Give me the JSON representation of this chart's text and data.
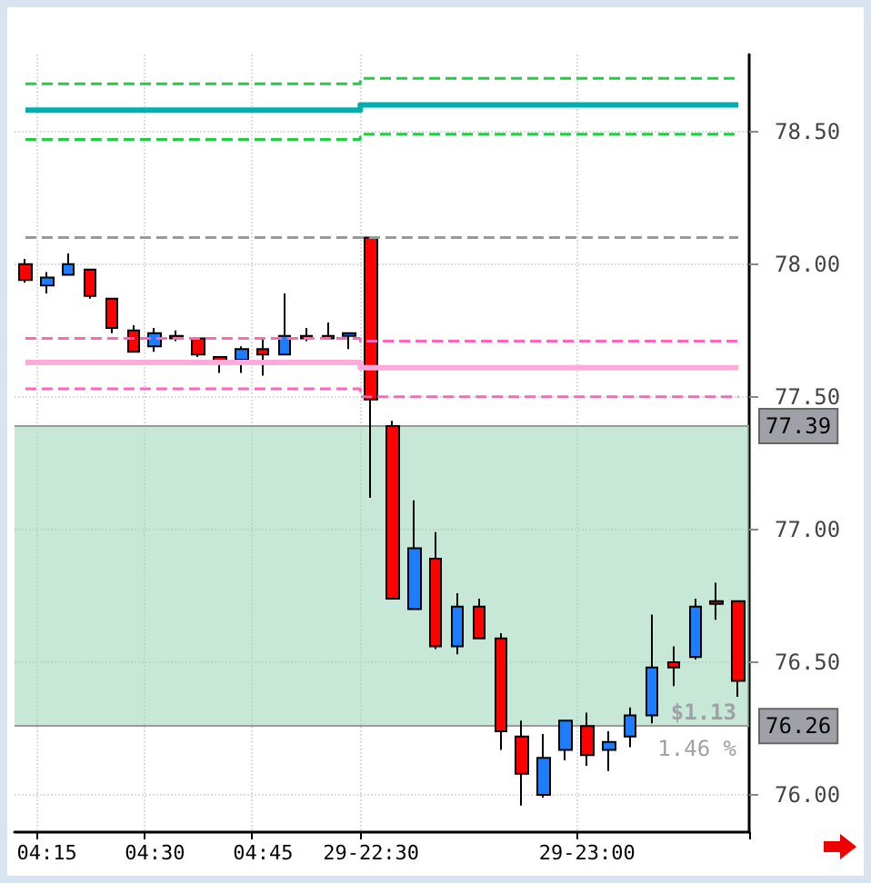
{
  "chart_data": {
    "type": "candlestick",
    "categories": [
      null,
      "04:15",
      null,
      null,
      null,
      null,
      "04:30",
      null,
      null,
      null,
      null,
      "04:45",
      null,
      null,
      null,
      null,
      "29-22:30",
      null,
      null,
      null,
      null,
      null,
      null,
      null,
      null,
      null,
      "29-23:00",
      null,
      null,
      null,
      null,
      null,
      null,
      null
    ],
    "ohlc": [
      [
        78.0,
        78.02,
        77.93,
        77.94
      ],
      [
        77.92,
        77.97,
        77.89,
        77.95
      ],
      [
        77.96,
        78.04,
        77.96,
        78.0
      ],
      [
        77.98,
        77.98,
        77.87,
        77.88
      ],
      [
        77.87,
        77.87,
        77.74,
        77.76
      ],
      [
        77.75,
        77.77,
        77.67,
        77.67
      ],
      [
        77.69,
        77.76,
        77.67,
        77.74
      ],
      [
        77.72,
        77.75,
        77.71,
        77.73
      ],
      [
        77.72,
        77.72,
        77.65,
        77.66
      ],
      [
        77.65,
        77.65,
        77.59,
        77.63
      ],
      [
        77.64,
        77.69,
        77.59,
        77.68
      ],
      [
        77.68,
        77.72,
        77.58,
        77.66
      ],
      [
        77.66,
        77.89,
        77.66,
        77.73
      ],
      [
        77.73,
        77.76,
        77.71,
        77.72
      ],
      [
        77.73,
        77.78,
        77.72,
        77.72
      ],
      [
        77.73,
        77.74,
        77.68,
        77.74
      ],
      [
        78.1,
        78.1,
        77.12,
        77.49
      ],
      [
        77.39,
        77.41,
        76.74,
        76.74
      ],
      [
        76.7,
        77.11,
        76.7,
        76.93
      ],
      [
        76.89,
        76.99,
        76.55,
        76.56
      ],
      [
        76.56,
        76.76,
        76.53,
        76.71
      ],
      [
        76.71,
        76.74,
        76.59,
        76.59
      ],
      [
        76.59,
        76.61,
        76.17,
        76.24
      ],
      [
        76.22,
        76.28,
        75.96,
        76.08
      ],
      [
        76.0,
        76.23,
        75.99,
        76.14
      ],
      [
        76.17,
        76.28,
        76.13,
        76.28
      ],
      [
        76.26,
        76.31,
        76.11,
        76.15
      ],
      [
        76.17,
        76.24,
        76.09,
        76.2
      ],
      [
        76.22,
        76.33,
        76.18,
        76.3
      ],
      [
        76.3,
        76.68,
        76.27,
        76.48
      ],
      [
        76.5,
        76.56,
        76.41,
        76.48
      ],
      [
        76.52,
        76.74,
        76.51,
        76.71
      ],
      [
        76.73,
        76.8,
        76.66,
        76.72
      ],
      [
        76.73,
        76.73,
        76.37,
        76.43
      ]
    ],
    "colors": [
      "#ff0000",
      "#1e7cff",
      "#1e7cff",
      "#ff0000",
      "#ff0000",
      "#ff0000",
      "#1e7cff",
      "#ff0000",
      "#ff0000",
      "#ff0000",
      "#1e7cff",
      "#ff0000",
      "#1e7cff",
      "#ff0000",
      "#ff0000",
      "#1e7cff",
      "#ff0000",
      "#ff0000",
      "#1e7cff",
      "#ff0000",
      "#1e7cff",
      "#ff0000",
      "#ff0000",
      "#ff0000",
      "#1e7cff",
      "#1e7cff",
      "#ff0000",
      "#1e7cff",
      "#1e7cff",
      "#1e7cff",
      "#ff0000",
      "#1e7cff",
      "#ff0000",
      "#ff0000"
    ],
    "series": [
      {
        "type": "step",
        "color": "#22cc44",
        "line_style": "dashed",
        "values": [
          78.68,
          78.68,
          78.68,
          78.68,
          78.68,
          78.68,
          78.68,
          78.68,
          78.68,
          78.68,
          78.68,
          78.68,
          78.68,
          78.68,
          78.68,
          78.68,
          78.7,
          78.7,
          78.7,
          78.7,
          78.7,
          78.7,
          78.7,
          78.7,
          78.7,
          78.7,
          78.7,
          78.7,
          78.7,
          78.7,
          78.7,
          78.7,
          78.7,
          78.7
        ]
      },
      {
        "type": "step",
        "color": "#00b0b0",
        "line_style": "solid",
        "values": [
          78.58,
          78.58,
          78.58,
          78.58,
          78.58,
          78.58,
          78.58,
          78.58,
          78.58,
          78.58,
          78.58,
          78.58,
          78.58,
          78.58,
          78.58,
          78.58,
          78.6,
          78.6,
          78.6,
          78.6,
          78.6,
          78.6,
          78.6,
          78.6,
          78.6,
          78.6,
          78.6,
          78.6,
          78.6,
          78.6,
          78.6,
          78.6,
          78.6,
          78.6
        ]
      },
      {
        "type": "step",
        "color": "#22cc44",
        "line_style": "dashed",
        "values": [
          78.47,
          78.47,
          78.47,
          78.47,
          78.47,
          78.47,
          78.47,
          78.47,
          78.47,
          78.47,
          78.47,
          78.47,
          78.47,
          78.47,
          78.47,
          78.47,
          78.49,
          78.49,
          78.49,
          78.49,
          78.49,
          78.49,
          78.49,
          78.49,
          78.49,
          78.49,
          78.49,
          78.49,
          78.49,
          78.49,
          78.49,
          78.49,
          78.49,
          78.49
        ]
      },
      {
        "type": "line",
        "color": "#999999",
        "line_style": "dashed",
        "values": [
          78.1,
          78.1,
          78.1,
          78.1,
          78.1,
          78.1,
          78.1,
          78.1,
          78.1,
          78.1,
          78.1,
          78.1,
          78.1,
          78.1,
          78.1,
          78.1,
          78.1,
          78.1,
          78.1,
          78.1,
          78.1,
          78.1,
          78.1,
          78.1,
          78.1,
          78.1,
          78.1,
          78.1,
          78.1,
          78.1,
          78.1,
          78.1,
          78.1,
          78.1
        ]
      },
      {
        "type": "step",
        "color": "#ff66bb",
        "line_style": "dashed",
        "values": [
          77.72,
          77.72,
          77.72,
          77.72,
          77.72,
          77.72,
          77.72,
          77.72,
          77.72,
          77.72,
          77.72,
          77.72,
          77.72,
          77.72,
          77.72,
          77.72,
          77.71,
          77.71,
          77.71,
          77.71,
          77.71,
          77.71,
          77.71,
          77.71,
          77.71,
          77.71,
          77.71,
          77.71,
          77.71,
          77.71,
          77.71,
          77.71,
          77.71,
          77.71
        ]
      },
      {
        "type": "step",
        "color": "#ffaadd",
        "line_style": "solid",
        "values": [
          77.63,
          77.63,
          77.63,
          77.63,
          77.63,
          77.63,
          77.63,
          77.63,
          77.63,
          77.63,
          77.63,
          77.63,
          77.63,
          77.63,
          77.63,
          77.63,
          77.61,
          77.61,
          77.61,
          77.61,
          77.61,
          77.61,
          77.61,
          77.61,
          77.61,
          77.61,
          77.61,
          77.61,
          77.61,
          77.61,
          77.61,
          77.61,
          77.61,
          77.61
        ]
      },
      {
        "type": "step",
        "color": "#ff66bb",
        "line_style": "dashed",
        "values": [
          77.53,
          77.53,
          77.53,
          77.53,
          77.53,
          77.53,
          77.53,
          77.53,
          77.53,
          77.53,
          77.53,
          77.53,
          77.53,
          77.53,
          77.53,
          77.53,
          77.5,
          77.5,
          77.5,
          77.5,
          77.5,
          77.5,
          77.5,
          77.5,
          77.5,
          77.5,
          77.5,
          77.5,
          77.5,
          77.5,
          77.5,
          77.5,
          77.5,
          77.5
        ]
      }
    ],
    "ylim": [
      75.86,
      78.79
    ],
    "yticks": [
      {
        "value": 76,
        "label": "76.00"
      },
      {
        "value": 76.5,
        "label": "76.50"
      },
      {
        "value": 77,
        "label": "77.00"
      },
      {
        "value": 77.5,
        "label": "77.50"
      },
      {
        "value": 78,
        "label": "78.00"
      },
      {
        "value": 78.5,
        "label": "78.50"
      }
    ],
    "ref_lines": [
      {
        "axis": "y",
        "value": 77.39,
        "label": "77.39",
        "color": "#999999"
      },
      {
        "axis": "y",
        "value": 76.26,
        "label": "76.26",
        "color": "#999999"
      }
    ],
    "bands": [
      {
        "axis": "y",
        "from": 76.26,
        "to": 77.39,
        "color": "#99d6b4"
      }
    ],
    "annotations": [
      "$1.13",
      "1.46 %"
    ],
    "grid": true,
    "marker": "none"
  }
}
